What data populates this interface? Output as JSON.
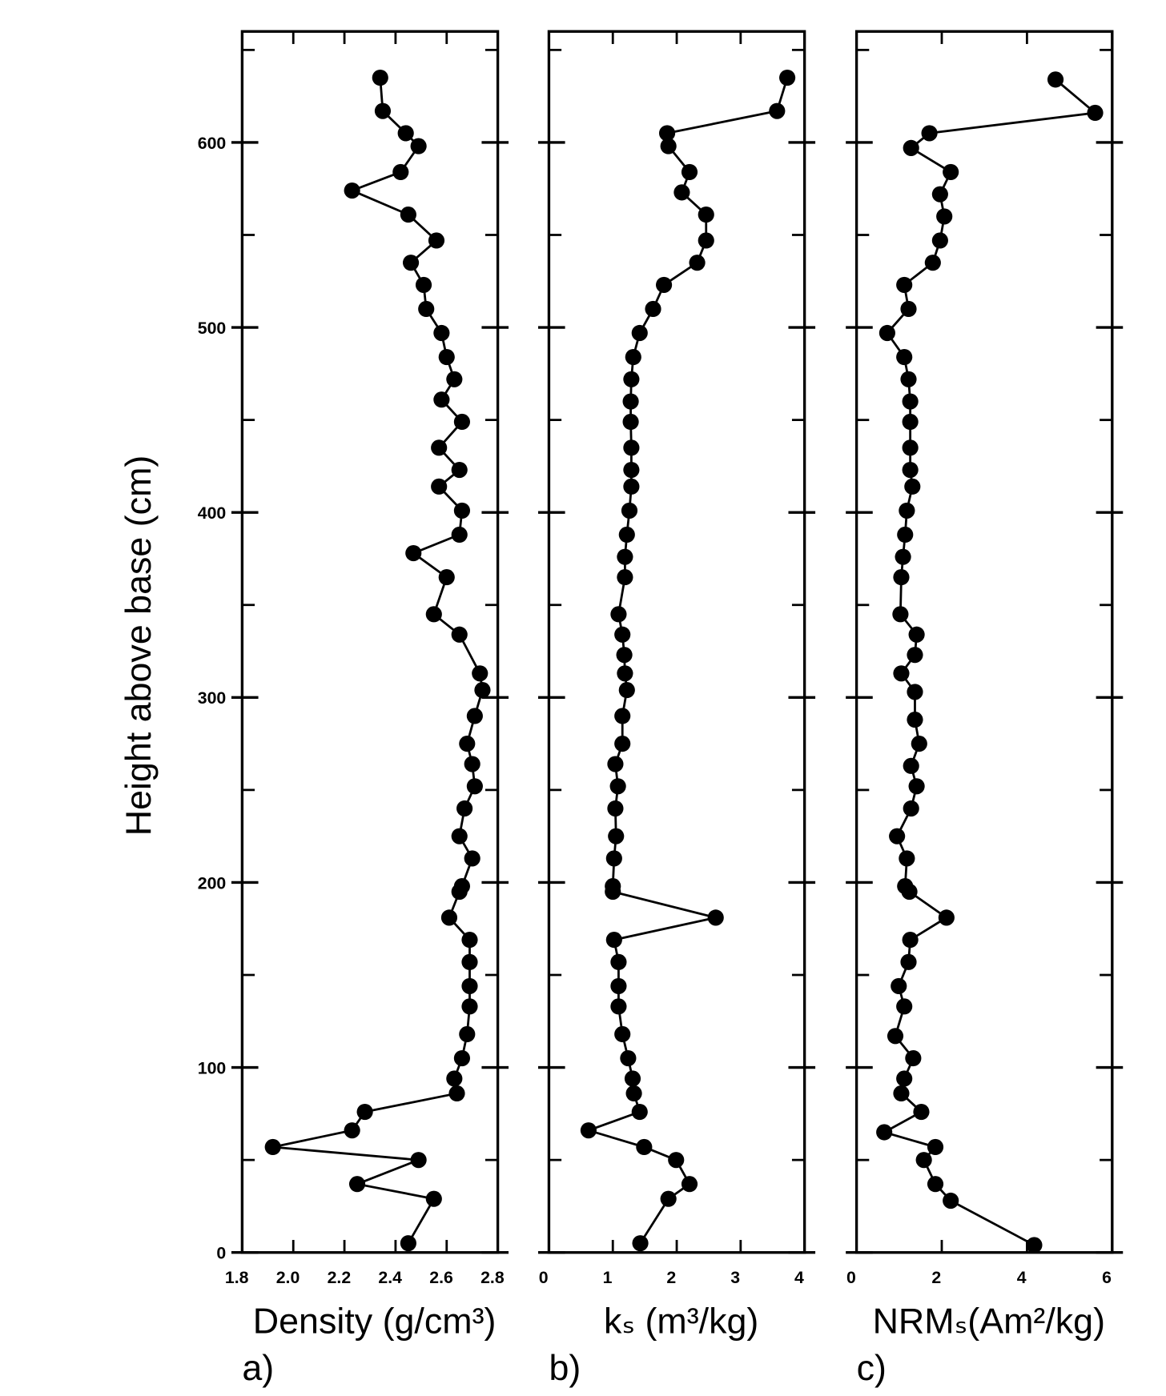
{
  "chart_data": [
    {
      "type": "line",
      "ylabel": "Height above base  (cm)",
      "xlabel": "Density (g/cm³)",
      "panel": "a)",
      "color": "#000000",
      "ylim": [
        0,
        660
      ],
      "yticks": [
        0,
        100,
        200,
        300,
        400,
        500,
        600
      ],
      "yminor": [
        50,
        150,
        250,
        350,
        450,
        550,
        650
      ],
      "xlim": [
        1.8,
        2.8
      ],
      "xticks": [
        1.8,
        {
          "value": 2,
          "label": "2.0"
        },
        2.2,
        2.4,
        2.6,
        2.8
      ],
      "x": [
        2.34,
        2.35,
        2.44,
        2.49,
        2.42,
        2.23,
        2.45,
        2.56,
        2.46,
        2.51,
        2.52,
        2.58,
        2.6,
        2.63,
        2.58,
        2.66,
        2.57,
        2.65,
        2.57,
        2.66,
        2.65,
        2.47,
        2.6,
        2.55,
        2.65,
        2.73,
        2.74,
        2.71,
        2.68,
        2.7,
        2.71,
        2.67,
        2.65,
        2.7,
        2.66,
        2.65,
        2.61,
        2.69,
        2.69,
        2.69,
        2.69,
        2.68,
        2.66,
        2.63,
        2.64,
        2.28,
        2.23,
        1.92,
        2.49,
        2.25,
        2.55,
        2.45
      ],
      "y": [
        635,
        617,
        605,
        598,
        584,
        574,
        561,
        547,
        535,
        523,
        510,
        497,
        484,
        472,
        461,
        449,
        435,
        423,
        414,
        401,
        388,
        378,
        365,
        345,
        334,
        313,
        304,
        290,
        275,
        264,
        252,
        240,
        225,
        213,
        198,
        195,
        181,
        169,
        157,
        144,
        133,
        118,
        105,
        94,
        86,
        76,
        66,
        57,
        50,
        37,
        29,
        5
      ]
    },
    {
      "type": "line",
      "xlabel": "kₛ  (m³/kg)",
      "panel": "b)",
      "color": "#000000",
      "xlim": [
        0,
        4
      ],
      "xticks": [
        0,
        1,
        2,
        3,
        4
      ],
      "x": [
        3.73,
        3.57,
        1.85,
        1.87,
        2.2,
        2.08,
        2.46,
        2.46,
        2.32,
        1.8,
        1.63,
        1.42,
        1.32,
        1.29,
        1.28,
        1.28,
        1.29,
        1.29,
        1.29,
        1.26,
        1.22,
        1.19,
        1.19,
        1.09,
        1.15,
        1.18,
        1.19,
        1.22,
        1.15,
        1.15,
        1.04,
        1.08,
        1.04,
        1.05,
        1.02,
        1,
        1,
        2.61,
        1.02,
        1.09,
        1.09,
        1.09,
        1.15,
        1.24,
        1.31,
        1.33,
        1.42,
        0.62,
        1.49,
        1.99,
        2.2,
        1.87,
        1.43
      ],
      "y": [
        635,
        617,
        605,
        598,
        584,
        573,
        561,
        547,
        535,
        523,
        510,
        497,
        484,
        472,
        460,
        449,
        435,
        423,
        414,
        401,
        388,
        376,
        365,
        345,
        334,
        323,
        313,
        304,
        290,
        275,
        264,
        252,
        240,
        225,
        213,
        198,
        195,
        181,
        169,
        157,
        144,
        133,
        118,
        105,
        94,
        86,
        76,
        66,
        57,
        50,
        37,
        29,
        5
      ]
    },
    {
      "type": "line",
      "xlabel": "NRMₛ(Am²/kg)",
      "panel": "c)",
      "color": "#000000",
      "xlim": [
        0,
        6
      ],
      "xticks": [
        0,
        2,
        4,
        6
      ],
      "x": [
        4.67,
        5.6,
        1.71,
        1.28,
        2.21,
        1.96,
        2.06,
        1.96,
        1.79,
        1.12,
        1.22,
        0.72,
        1.12,
        1.22,
        1.26,
        1.26,
        1.26,
        1.26,
        1.31,
        1.18,
        1.14,
        1.09,
        1.05,
        1.03,
        1.41,
        1.37,
        1.05,
        1.37,
        1.37,
        1.47,
        1.28,
        1.41,
        1.28,
        0.95,
        1.18,
        1.14,
        1.24,
        2.11,
        1.26,
        1.22,
        0.99,
        1.12,
        0.91,
        1.33,
        1.12,
        1.05,
        1.52,
        0.65,
        1.85,
        1.58,
        1.85,
        2.21,
        4.17
      ],
      "y": [
        634,
        616,
        605,
        597,
        584,
        572,
        560,
        547,
        535,
        523,
        510,
        497,
        484,
        472,
        460,
        449,
        435,
        423,
        414,
        401,
        388,
        376,
        365,
        345,
        334,
        323,
        313,
        303,
        288,
        275,
        263,
        252,
        240,
        225,
        213,
        198,
        195,
        181,
        169,
        157,
        144,
        133,
        117,
        105,
        94,
        86,
        76,
        65,
        57,
        50,
        37,
        28,
        4
      ]
    }
  ]
}
